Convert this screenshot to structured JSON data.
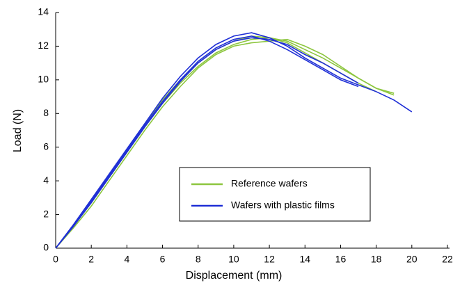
{
  "chart_data": {
    "type": "line",
    "x_label": "Displacement (mm)",
    "y_label": "Load (N)",
    "xlim": [
      0,
      22
    ],
    "xticks": [
      0,
      2,
      4,
      6,
      8,
      10,
      12,
      14,
      16,
      18,
      20,
      22
    ],
    "ylim": [
      0,
      14
    ],
    "yticks": [
      0,
      2,
      4,
      6,
      8,
      10,
      12,
      14
    ],
    "series": [
      {
        "name": "Reference wafers",
        "color": "#8dc63f",
        "curves": [
          {
            "x": [
              0,
              1,
              2,
              3,
              4,
              5,
              6,
              7,
              8,
              9,
              10,
              11,
              12,
              13,
              14,
              15,
              16,
              17,
              18,
              19
            ],
            "values": [
              0,
              1.3,
              2.7,
              4.2,
              5.7,
              7.2,
              8.6,
              9.8,
              10.8,
              11.6,
              12.1,
              12.4,
              12.5,
              12.3,
              11.8,
              11.3,
              10.7,
              10.1,
              9.5,
              9.2
            ]
          },
          {
            "x": [
              0,
              1,
              2,
              3,
              4,
              5,
              6,
              7,
              8,
              9,
              10,
              11,
              12,
              13,
              14,
              15,
              16,
              17,
              18,
              19
            ],
            "values": [
              0,
              1.2,
              2.5,
              4.0,
              5.5,
              7.0,
              8.4,
              9.6,
              10.7,
              11.5,
              12.0,
              12.2,
              12.3,
              12.4,
              12.0,
              11.5,
              10.8,
              10.1,
              9.5,
              9.1
            ]
          },
          {
            "x": [
              0,
              1,
              2,
              3,
              4,
              5,
              6,
              7,
              8,
              9,
              10,
              11,
              12,
              13,
              14,
              15,
              16,
              17,
              18
            ],
            "values": [
              0,
              1.3,
              2.8,
              4.3,
              5.8,
              7.3,
              8.8,
              10.0,
              11.0,
              11.8,
              12.3,
              12.6,
              12.5,
              12.2,
              11.6,
              11.0,
              10.4,
              9.8,
              9.3
            ]
          }
        ]
      },
      {
        "name": "Wafers with plastic films",
        "color": "#1f2fd6",
        "curves": [
          {
            "x": [
              0,
              1,
              2,
              3,
              4,
              5,
              6,
              7,
              8,
              9,
              10,
              11,
              12,
              13,
              14,
              15,
              16,
              17,
              18,
              19,
              20
            ],
            "values": [
              0,
              1.4,
              2.9,
              4.4,
              5.9,
              7.4,
              8.9,
              10.2,
              11.3,
              12.1,
              12.6,
              12.8,
              12.5,
              12.0,
              11.3,
              10.7,
              10.1,
              9.7,
              9.3,
              8.8,
              8.1
            ]
          },
          {
            "x": [
              0,
              1,
              2,
              3,
              4,
              5,
              6,
              7,
              8,
              9,
              10,
              11,
              12,
              13,
              14,
              15,
              16,
              17
            ],
            "values": [
              0,
              1.3,
              2.7,
              4.2,
              5.7,
              7.2,
              8.6,
              9.9,
              11.0,
              11.8,
              12.3,
              12.5,
              12.4,
              12.1,
              11.5,
              11.0,
              10.4,
              9.8
            ]
          },
          {
            "x": [
              0,
              1,
              2,
              3,
              4,
              5,
              6,
              7,
              8,
              9,
              10,
              11,
              12,
              13,
              14,
              15,
              16,
              17
            ],
            "values": [
              0,
              1.3,
              2.8,
              4.3,
              5.8,
              7.3,
              8.7,
              10.0,
              11.1,
              11.9,
              12.4,
              12.6,
              12.3,
              11.8,
              11.2,
              10.6,
              10.0,
              9.6
            ]
          }
        ]
      }
    ]
  }
}
